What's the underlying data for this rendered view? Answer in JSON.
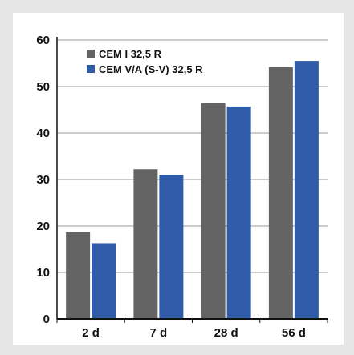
{
  "chart_data": {
    "type": "bar",
    "title": "",
    "xlabel": "",
    "ylabel": "",
    "categories": [
      "2 d",
      "7 d",
      "28 d",
      "56 d"
    ],
    "ylim": [
      0,
      60
    ],
    "yticks": [
      "0",
      "10",
      "20",
      "30",
      "40",
      "50",
      "60"
    ],
    "grid": "horizontal",
    "legend_position": "top-left",
    "series": [
      {
        "name": "CEM I 32,5 R",
        "color": "#646464",
        "values": [
          18.7,
          32.2,
          46.5,
          54.2
        ]
      },
      {
        "name": "CEM V/A (S-V) 32,5 R",
        "color": "#2f5ba9",
        "values": [
          16.3,
          31.0,
          45.7,
          55.5
        ]
      }
    ]
  }
}
